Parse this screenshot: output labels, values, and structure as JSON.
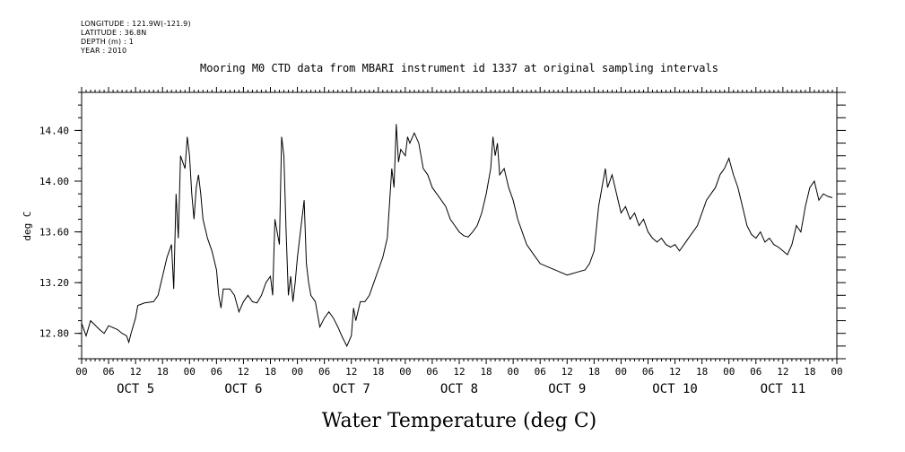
{
  "header": {
    "longitude": "LONGITUDE : 121.9W(-121.9)",
    "latitude": "LATITUDE : 36.8N",
    "depth": "DEPTH (m) : 1",
    "year": "YEAR : 2010"
  },
  "chart_data": {
    "type": "line",
    "title": "Mooring M0 CTD data from MBARI instrument id 1337 at original sampling intervals",
    "xlabel": "Water Temperature (deg C)",
    "ylabel": "deg C",
    "ylim": [
      12.6,
      14.7
    ],
    "yticks": [
      12.8,
      13.2,
      13.6,
      14.0,
      14.4
    ],
    "ytick_labels": [
      "12.80",
      "13.20",
      "13.60",
      "14.00",
      "14.40"
    ],
    "xlim_hours": [
      0,
      168
    ],
    "hour_tick_labels": [
      "00",
      "06",
      "12",
      "18"
    ],
    "day_labels": [
      "OCT  5",
      "OCT  6",
      "OCT  7",
      "OCT  8",
      "OCT  9",
      "OCT 10",
      "OCT 11"
    ],
    "grid": false,
    "series": [
      {
        "points": [
          [
            "2010-10-05 00:00",
            12.88
          ],
          [
            "2010-10-05 01:00",
            12.78
          ],
          [
            "2010-10-05 02:00",
            12.9
          ],
          [
            "2010-10-05 04:00",
            12.83
          ],
          [
            "2010-10-05 05:00",
            12.8
          ],
          [
            "2010-10-05 06:00",
            12.86
          ],
          [
            "2010-10-05 08:00",
            12.83
          ],
          [
            "2010-10-05 09:00",
            12.8
          ],
          [
            "2010-10-05 10:00",
            12.78
          ],
          [
            "2010-10-05 10:30",
            12.73
          ],
          [
            "2010-10-05 11:00",
            12.8
          ],
          [
            "2010-10-05 12:00",
            12.92
          ],
          [
            "2010-10-05 12:30",
            13.02
          ],
          [
            "2010-10-05 14:00",
            13.04
          ],
          [
            "2010-10-05 16:00",
            13.05
          ],
          [
            "2010-10-05 17:00",
            13.1
          ],
          [
            "2010-10-05 18:00",
            13.25
          ],
          [
            "2010-10-05 19:00",
            13.4
          ],
          [
            "2010-10-05 20:00",
            13.5
          ],
          [
            "2010-10-05 20:30",
            13.15
          ],
          [
            "2010-10-05 21:00",
            13.9
          ],
          [
            "2010-10-05 21:30",
            13.55
          ],
          [
            "2010-10-05 22:00",
            14.2
          ],
          [
            "2010-10-05 23:00",
            14.1
          ],
          [
            "2010-10-05 23:30",
            14.35
          ],
          [
            "2010-10-06 00:00",
            14.2
          ],
          [
            "2010-10-06 00:30",
            13.9
          ],
          [
            "2010-10-06 01:00",
            13.7
          ],
          [
            "2010-10-06 01:30",
            13.95
          ],
          [
            "2010-10-06 02:00",
            14.05
          ],
          [
            "2010-10-06 02:30",
            13.9
          ],
          [
            "2010-10-06 03:00",
            13.7
          ],
          [
            "2010-10-06 04:00",
            13.55
          ],
          [
            "2010-10-06 05:00",
            13.45
          ],
          [
            "2010-10-06 06:00",
            13.3
          ],
          [
            "2010-10-06 06:30",
            13.1
          ],
          [
            "2010-10-06 07:00",
            13.0
          ],
          [
            "2010-10-06 07:30",
            13.15
          ],
          [
            "2010-10-06 09:00",
            13.15
          ],
          [
            "2010-10-06 10:00",
            13.1
          ],
          [
            "2010-10-06 11:00",
            12.97
          ],
          [
            "2010-10-06 12:00",
            13.05
          ],
          [
            "2010-10-06 13:00",
            13.1
          ],
          [
            "2010-10-06 14:00",
            13.05
          ],
          [
            "2010-10-06 15:00",
            13.04
          ],
          [
            "2010-10-06 16:00",
            13.1
          ],
          [
            "2010-10-06 17:00",
            13.2
          ],
          [
            "2010-10-06 18:00",
            13.25
          ],
          [
            "2010-10-06 18:30",
            13.1
          ],
          [
            "2010-10-06 19:00",
            13.7
          ],
          [
            "2010-10-06 20:00",
            13.5
          ],
          [
            "2010-10-06 20:30",
            14.35
          ],
          [
            "2010-10-06 21:00",
            14.2
          ],
          [
            "2010-10-06 21:30",
            13.6
          ],
          [
            "2010-10-06 22:00",
            13.1
          ],
          [
            "2010-10-06 22:30",
            13.25
          ],
          [
            "2010-10-06 23:00",
            13.05
          ],
          [
            "2010-10-06 23:30",
            13.2
          ],
          [
            "2010-10-07 00:00",
            13.4
          ],
          [
            "2010-10-07 01:00",
            13.7
          ],
          [
            "2010-10-07 01:30",
            13.85
          ],
          [
            "2010-10-07 02:00",
            13.35
          ],
          [
            "2010-10-07 02:30",
            13.2
          ],
          [
            "2010-10-07 03:00",
            13.1
          ],
          [
            "2010-10-07 04:00",
            13.05
          ],
          [
            "2010-10-07 05:00",
            12.85
          ],
          [
            "2010-10-07 06:00",
            12.92
          ],
          [
            "2010-10-07 07:00",
            12.97
          ],
          [
            "2010-10-07 08:00",
            12.92
          ],
          [
            "2010-10-07 09:00",
            12.85
          ],
          [
            "2010-10-07 10:00",
            12.77
          ],
          [
            "2010-10-07 11:00",
            12.7
          ],
          [
            "2010-10-07 12:00",
            12.78
          ],
          [
            "2010-10-07 12:30",
            13.0
          ],
          [
            "2010-10-07 13:00",
            12.9
          ],
          [
            "2010-10-07 14:00",
            13.05
          ],
          [
            "2010-10-07 15:00",
            13.05
          ],
          [
            "2010-10-07 16:00",
            13.1
          ],
          [
            "2010-10-07 17:00",
            13.2
          ],
          [
            "2010-10-07 18:00",
            13.3
          ],
          [
            "2010-10-07 19:00",
            13.4
          ],
          [
            "2010-10-07 20:00",
            13.55
          ],
          [
            "2010-10-07 21:00",
            14.1
          ],
          [
            "2010-10-07 21:30",
            13.95
          ],
          [
            "2010-10-07 22:00",
            14.45
          ],
          [
            "2010-10-07 22:30",
            14.15
          ],
          [
            "2010-10-07 23:00",
            14.25
          ],
          [
            "2010-10-08 00:00",
            14.2
          ],
          [
            "2010-10-08 00:30",
            14.35
          ],
          [
            "2010-10-08 01:00",
            14.3
          ],
          [
            "2010-10-08 02:00",
            14.38
          ],
          [
            "2010-10-08 03:00",
            14.3
          ],
          [
            "2010-10-08 04:00",
            14.1
          ],
          [
            "2010-10-08 05:00",
            14.05
          ],
          [
            "2010-10-08 06:00",
            13.95
          ],
          [
            "2010-10-08 07:00",
            13.9
          ],
          [
            "2010-10-08 08:00",
            13.85
          ],
          [
            "2010-10-08 09:00",
            13.8
          ],
          [
            "2010-10-08 10:00",
            13.7
          ],
          [
            "2010-10-08 11:00",
            13.65
          ],
          [
            "2010-10-08 12:00",
            13.6
          ],
          [
            "2010-10-08 13:00",
            13.57
          ],
          [
            "2010-10-08 14:00",
            13.56
          ],
          [
            "2010-10-08 15:00",
            13.6
          ],
          [
            "2010-10-08 16:00",
            13.65
          ],
          [
            "2010-10-08 17:00",
            13.75
          ],
          [
            "2010-10-08 18:00",
            13.9
          ],
          [
            "2010-10-08 19:00",
            14.1
          ],
          [
            "2010-10-08 19:30",
            14.35
          ],
          [
            "2010-10-08 20:00",
            14.2
          ],
          [
            "2010-10-08 20:30",
            14.3
          ],
          [
            "2010-10-08 21:00",
            14.05
          ],
          [
            "2010-10-08 22:00",
            14.1
          ],
          [
            "2010-10-08 23:00",
            13.95
          ],
          [
            "2010-10-09 00:00",
            13.85
          ],
          [
            "2010-10-09 01:00",
            13.7
          ],
          [
            "2010-10-09 02:00",
            13.6
          ],
          [
            "2010-10-09 03:00",
            13.5
          ],
          [
            "2010-10-09 04:00",
            13.45
          ],
          [
            "2010-10-09 05:00",
            13.4
          ],
          [
            "2010-10-09 06:00",
            13.35
          ],
          [
            "2010-10-09 08:00",
            13.32
          ],
          [
            "2010-10-09 10:00",
            13.29
          ],
          [
            "2010-10-09 12:00",
            13.26
          ],
          [
            "2010-10-09 14:00",
            13.28
          ],
          [
            "2010-10-09 16:00",
            13.3
          ],
          [
            "2010-10-09 17:00",
            13.35
          ],
          [
            "2010-10-09 18:00",
            13.45
          ],
          [
            "2010-10-09 19:00",
            13.8
          ],
          [
            "2010-10-09 20:00",
            14.0
          ],
          [
            "2010-10-09 20:30",
            14.1
          ],
          [
            "2010-10-09 21:00",
            13.95
          ],
          [
            "2010-10-09 22:00",
            14.05
          ],
          [
            "2010-10-09 23:00",
            13.9
          ],
          [
            "2010-10-10 00:00",
            13.75
          ],
          [
            "2010-10-10 01:00",
            13.8
          ],
          [
            "2010-10-10 02:00",
            13.7
          ],
          [
            "2010-10-10 03:00",
            13.75
          ],
          [
            "2010-10-10 04:00",
            13.65
          ],
          [
            "2010-10-10 05:00",
            13.7
          ],
          [
            "2010-10-10 06:00",
            13.6
          ],
          [
            "2010-10-10 07:00",
            13.55
          ],
          [
            "2010-10-10 08:00",
            13.52
          ],
          [
            "2010-10-10 09:00",
            13.55
          ],
          [
            "2010-10-10 10:00",
            13.5
          ],
          [
            "2010-10-10 11:00",
            13.48
          ],
          [
            "2010-10-10 12:00",
            13.5
          ],
          [
            "2010-10-10 13:00",
            13.45
          ],
          [
            "2010-10-10 14:00",
            13.5
          ],
          [
            "2010-10-10 15:00",
            13.55
          ],
          [
            "2010-10-10 16:00",
            13.6
          ],
          [
            "2010-10-10 17:00",
            13.65
          ],
          [
            "2010-10-10 18:00",
            13.75
          ],
          [
            "2010-10-10 19:00",
            13.85
          ],
          [
            "2010-10-10 20:00",
            13.9
          ],
          [
            "2010-10-10 21:00",
            13.95
          ],
          [
            "2010-10-10 22:00",
            14.05
          ],
          [
            "2010-10-10 23:00",
            14.1
          ],
          [
            "2010-10-11 00:00",
            14.18
          ],
          [
            "2010-10-11 01:00",
            14.05
          ],
          [
            "2010-10-11 02:00",
            13.95
          ],
          [
            "2010-10-11 03:00",
            13.8
          ],
          [
            "2010-10-11 04:00",
            13.65
          ],
          [
            "2010-10-11 05:00",
            13.58
          ],
          [
            "2010-10-11 06:00",
            13.55
          ],
          [
            "2010-10-11 07:00",
            13.6
          ],
          [
            "2010-10-11 08:00",
            13.52
          ],
          [
            "2010-10-11 09:00",
            13.55
          ],
          [
            "2010-10-11 10:00",
            13.5
          ],
          [
            "2010-10-11 11:00",
            13.48
          ],
          [
            "2010-10-11 12:00",
            13.45
          ],
          [
            "2010-10-11 13:00",
            13.42
          ],
          [
            "2010-10-11 14:00",
            13.5
          ],
          [
            "2010-10-11 15:00",
            13.65
          ],
          [
            "2010-10-11 16:00",
            13.6
          ],
          [
            "2010-10-11 17:00",
            13.8
          ],
          [
            "2010-10-11 18:00",
            13.95
          ],
          [
            "2010-10-11 19:00",
            14.0
          ],
          [
            "2010-10-11 20:00",
            13.85
          ],
          [
            "2010-10-11 21:00",
            13.9
          ],
          [
            "2010-10-11 22:00",
            13.88
          ],
          [
            "2010-10-11 23:00",
            13.87
          ]
        ]
      }
    ]
  }
}
